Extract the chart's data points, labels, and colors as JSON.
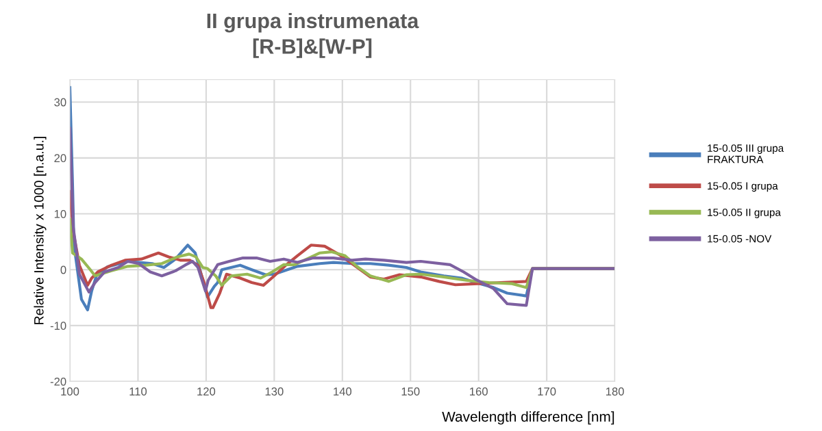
{
  "chart_data": {
    "type": "line",
    "title": "II grupa instrumenata\n[R-B]&[W-P]",
    "xlabel": "Wavelength difference [nm]",
    "ylabel": "Relative Intensity x 1000 [n.a.u.]",
    "xlim": [
      100,
      180
    ],
    "xticks": [
      100,
      110,
      120,
      130,
      140,
      150,
      160,
      170,
      180
    ],
    "ylim": [
      -20,
      34
    ],
    "yticks": [
      -20,
      -10,
      0,
      10,
      20,
      30
    ],
    "grid": true,
    "legend": "right",
    "marker": "none",
    "line_style": "solid",
    "series": [
      {
        "name": "15-0.05 III grupa\nFRAKTURA",
        "color": "#4a7ebb",
        "x": [
          100,
          100.4,
          100.6,
          101.7,
          102.6,
          103.2,
          103.9,
          105.5,
          108.5,
          112.1,
          113.8,
          115.5,
          117.3,
          118.4,
          119.1,
          120.2,
          121.2,
          121.7,
          122.3,
          125.0,
          126.7,
          128.7,
          130,
          133.4,
          136.7,
          138.7,
          141.4,
          144.1,
          146.8,
          149.4,
          151.5,
          154.9,
          157.5,
          160.2,
          162.2,
          164.2,
          167.0,
          167.9,
          180
        ],
        "values": [
          32.6,
          15,
          4.5,
          -5.3,
          -7.2,
          -3.8,
          -1.1,
          0.5,
          1.5,
          1.1,
          0.4,
          1.9,
          4.4,
          3.0,
          0,
          -4.9,
          -3.0,
          -2.3,
          0,
          0.8,
          0,
          -0.9,
          -0.8,
          0.6,
          1.1,
          1.3,
          1.1,
          1.1,
          0.8,
          0.4,
          -0.4,
          -1.1,
          -1.5,
          -2.5,
          -3.2,
          -4.2,
          -4.7,
          0.2,
          0.2
        ]
      },
      {
        "name": "15-0.05 I grupa",
        "color": "#be4b48",
        "x": [
          100,
          100.5,
          101.4,
          102.6,
          103.2,
          104.1,
          106.1,
          108.1,
          110.5,
          113.0,
          114.5,
          116.2,
          117.6,
          118.8,
          119.7,
          120.7,
          121.0,
          122.0,
          123.0,
          125.0,
          126.7,
          128.4,
          130,
          131.7,
          133.4,
          135.4,
          137.4,
          139.4,
          141.4,
          144.1,
          146.1,
          148.4,
          151.5,
          154.2,
          156.6,
          159.9,
          163.2,
          167.0,
          167.9,
          180
        ],
        "values": [
          14,
          6.8,
          0.8,
          -2.8,
          -1.5,
          -0.4,
          0.8,
          1.7,
          1.9,
          3.0,
          2.3,
          1.7,
          1.7,
          0.8,
          -2.3,
          -6.8,
          -6.8,
          -4.2,
          -0.8,
          -1.5,
          -2.3,
          -2.8,
          -1.1,
          0.8,
          2.5,
          4.4,
          4.2,
          2.8,
          1.1,
          -1.3,
          -1.7,
          -0.9,
          -1.3,
          -2.1,
          -2.7,
          -2.5,
          -2.3,
          -2.1,
          0.2,
          0.2
        ]
      },
      {
        "name": "15-0.05 II grupa",
        "color": "#98b954",
        "x": [
          100,
          100.4,
          101.7,
          103.0,
          103.7,
          106.1,
          108.5,
          111.2,
          113.5,
          115.8,
          117.5,
          118.5,
          119.5,
          120.2,
          121.4,
          122.3,
          123.7,
          126,
          128,
          129.7,
          131.4,
          133.0,
          135.1,
          136.7,
          138.4,
          140.4,
          142.1,
          144.1,
          146.8,
          149.4,
          151.5,
          154.9,
          158.2,
          161.5,
          164.9,
          167,
          167.9,
          180
        ],
        "values": [
          9,
          3.0,
          1.9,
          0,
          -1.1,
          -0.2,
          0.6,
          0.8,
          1.1,
          2.3,
          2.8,
          2.3,
          0.4,
          0.2,
          -1.1,
          -2.8,
          -1.1,
          -0.8,
          -1.5,
          -0.4,
          0.9,
          0.9,
          2.1,
          3.0,
          3.2,
          2.5,
          0.6,
          -1.1,
          -2.1,
          -0.9,
          -0.8,
          -1.3,
          -1.9,
          -2.3,
          -2.5,
          -3.2,
          0.2,
          0.2
        ]
      },
      {
        "name": "15-0.05 -NOV",
        "color": "#7d60a0",
        "x": [
          100,
          100.5,
          101.4,
          102.8,
          103.7,
          105.1,
          107.1,
          108.5,
          110.1,
          111.8,
          113.5,
          115.5,
          116.9,
          118.0,
          118.8,
          119.9,
          120.3,
          121.7,
          123.4,
          125.4,
          127.4,
          129.4,
          131.4,
          133.4,
          135.7,
          138.7,
          141.4,
          143.4,
          146.1,
          149.4,
          151.5,
          155.8,
          157.8,
          159.5,
          162.2,
          164.2,
          167,
          167.9,
          180
        ],
        "values": [
          25.3,
          7.6,
          -0.8,
          -4.0,
          -2.3,
          -0.4,
          0.4,
          1.5,
          1.1,
          -0.4,
          -1.1,
          -0.2,
          0.8,
          1.5,
          0.4,
          -3.8,
          -1.9,
          0.9,
          1.5,
          2.1,
          2.1,
          1.5,
          1.9,
          1.3,
          2.1,
          2.1,
          1.7,
          1.9,
          1.7,
          1.3,
          1.5,
          0.9,
          -0.4,
          -1.7,
          -3.4,
          -6.1,
          -6.4,
          0.2,
          0.2
        ]
      }
    ]
  }
}
